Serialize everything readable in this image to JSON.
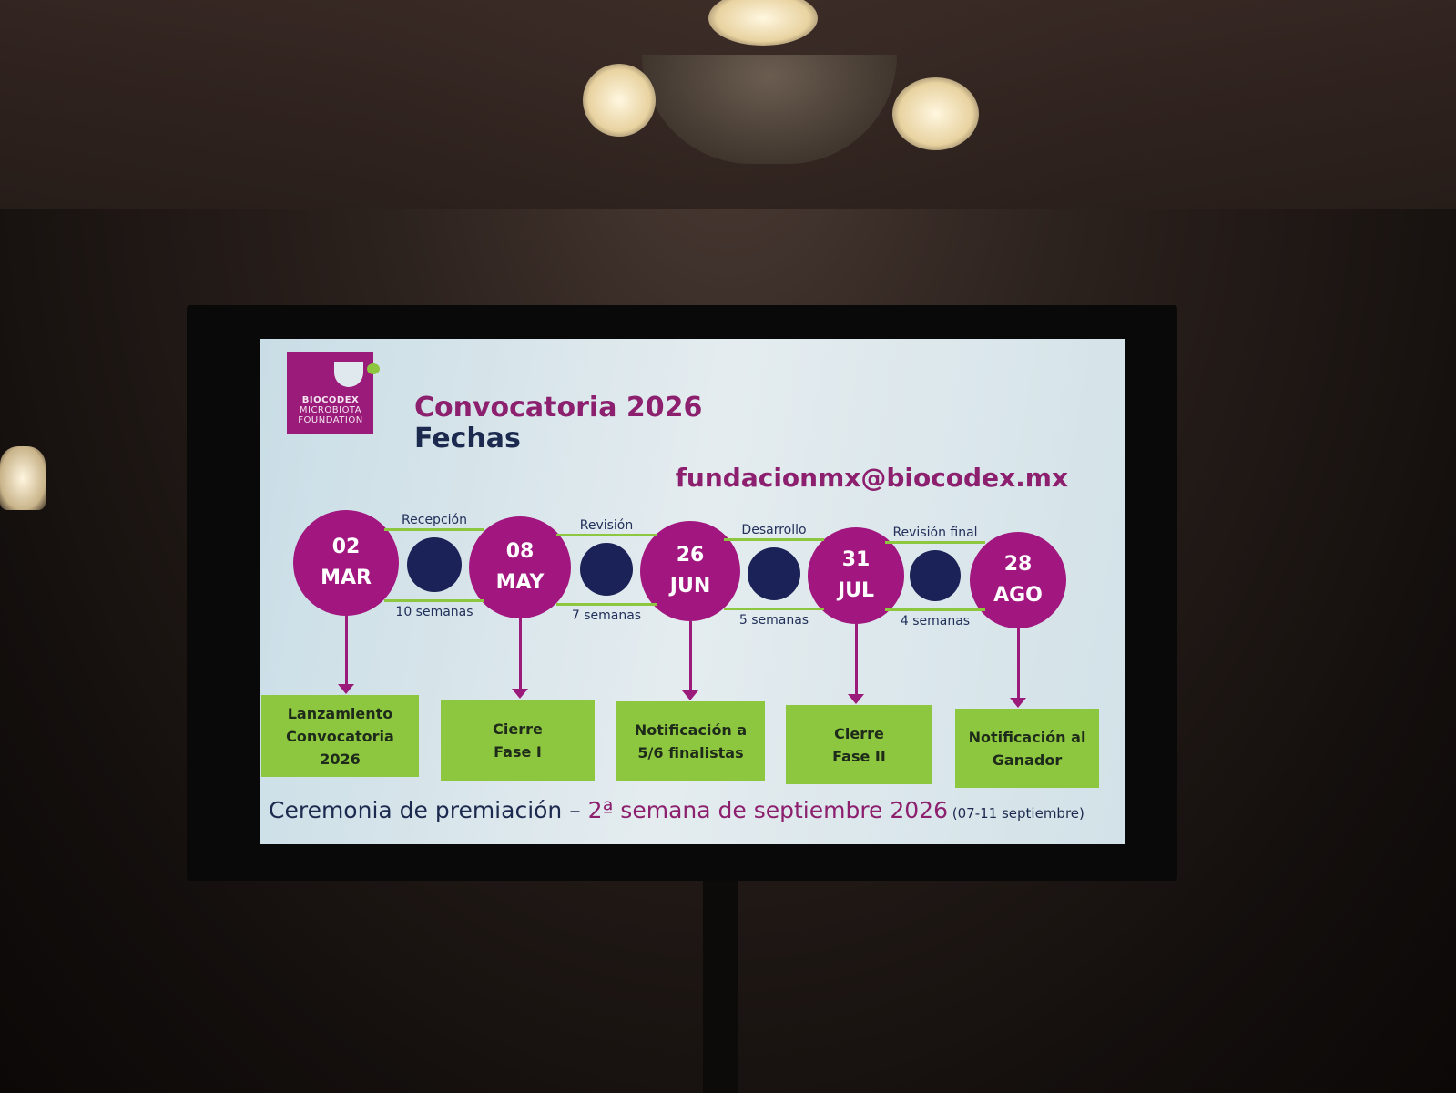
{
  "slide": {
    "logo": {
      "line1": "BIOCODEX",
      "line2": "MICROBIOTA",
      "line3": "FOUNDATION"
    },
    "title": "Convocatoria 2026",
    "subtitle": "Fechas",
    "email": "fundacionmx@biocodex.mx",
    "milestones": [
      {
        "day": "02",
        "month": "MAR",
        "event": "Lanzamiento\nConvocatoria\n2026"
      },
      {
        "day": "08",
        "month": "MAY",
        "event": "Cierre\nFase I"
      },
      {
        "day": "26",
        "month": "JUN",
        "event": "Notificación a\n5/6 finalistas"
      },
      {
        "day": "31",
        "month": "JUL",
        "event": "Cierre\nFase II"
      },
      {
        "day": "28",
        "month": "AGO",
        "event": "Notificación al\nGanador"
      }
    ],
    "phases": [
      {
        "label": "Recepción",
        "duration": "10 semanas"
      },
      {
        "label": "Revisión",
        "duration": "7 semanas"
      },
      {
        "label": "Desarrollo",
        "duration": "5 semanas"
      },
      {
        "label": "Revisión final",
        "duration": "4 semanas"
      }
    ],
    "footer": {
      "part1": "Ceremonia de premiación – ",
      "part2": "2ª semana de septiembre 2026",
      "part3": " (07-11 septiembre)"
    }
  },
  "colors": {
    "magenta": "#a2167f",
    "navy": "#1a2257",
    "green": "#8dc63f"
  }
}
